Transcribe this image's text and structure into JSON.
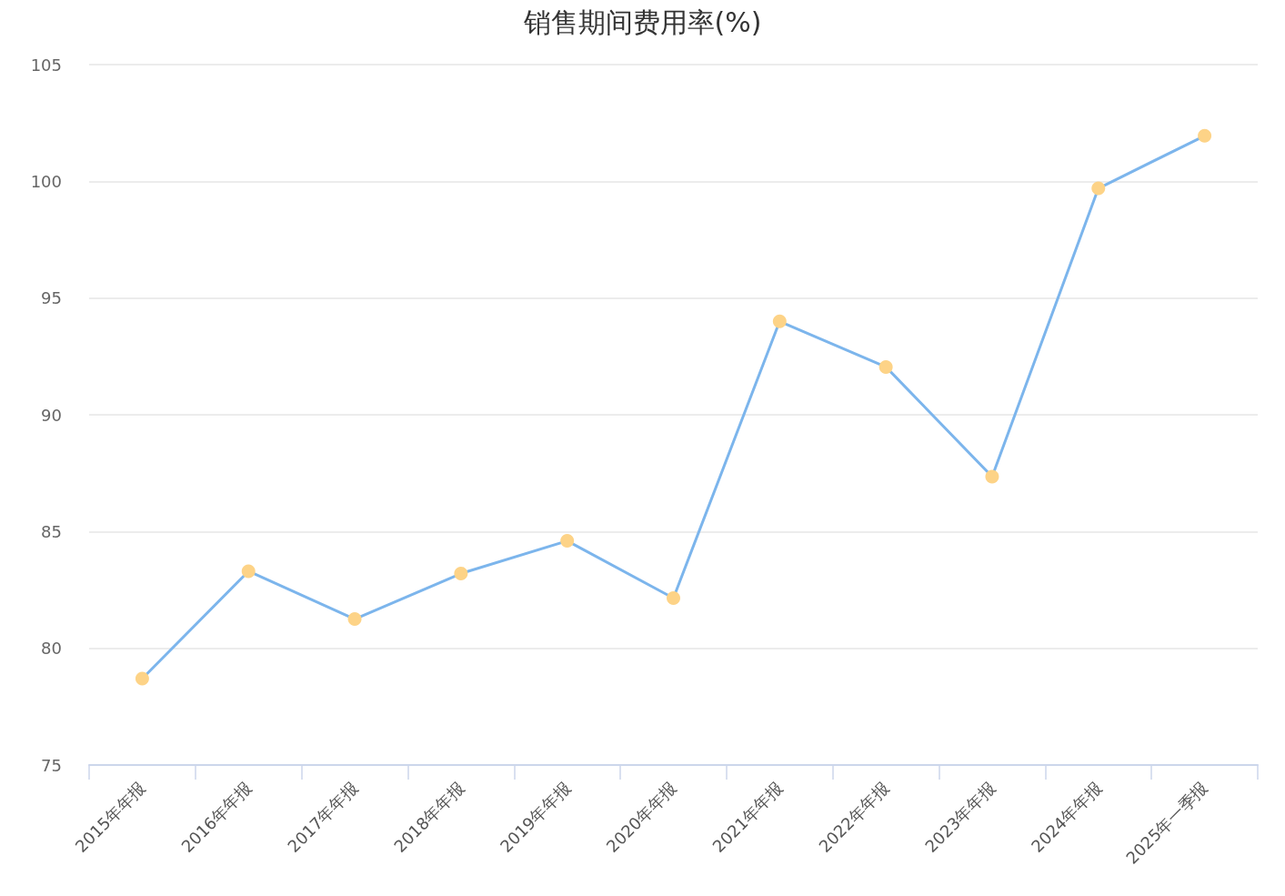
{
  "chart_data": {
    "type": "line",
    "title": "销售期间费用率(%)",
    "categories": [
      "2015年年报",
      "2016年年报",
      "2017年年报",
      "2018年年报",
      "2019年年报",
      "2020年年报",
      "2021年年报",
      "2022年年报",
      "2023年年报",
      "2024年年报",
      "2025年一季报"
    ],
    "series": [
      {
        "color": "#7cb5ec",
        "colors": [
          "#fdd387",
          "#fdd387",
          "#fdd387",
          "#fdd387",
          "#fdd387",
          "#fdd387",
          "#fdd387",
          "#fdd387",
          "#fdd387",
          "#fdd387",
          "#fdd387"
        ],
        "values": [
          78.7,
          83.3,
          81.25,
          83.2,
          84.6,
          82.15,
          94.0,
          92.05,
          87.35,
          99.7,
          101.95
        ]
      }
    ],
    "ylim": [
      75,
      105
    ],
    "yticks": [
      75,
      80,
      85,
      90,
      95,
      100,
      105
    ],
    "grid": "y",
    "marker": "circle",
    "line_style": "solid"
  }
}
